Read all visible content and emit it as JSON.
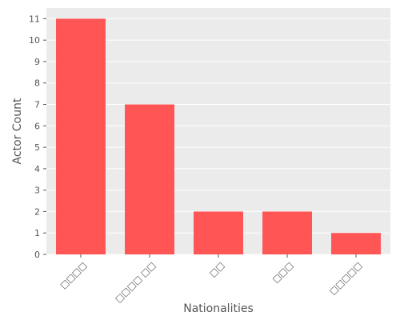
{
  "chart_data": {
    "type": "bar",
    "categories": [
      "□□□□",
      "□□□□ □□",
      "□□",
      "□□□",
      "□□□□□"
    ],
    "values": [
      11,
      7,
      2,
      2,
      1
    ],
    "title": "",
    "xlabel": "Nationalities",
    "ylabel": "Actor Count",
    "ylim": [
      0,
      11.5
    ],
    "yticks": [
      0,
      1,
      2,
      3,
      4,
      5,
      6,
      7,
      8,
      9,
      10,
      11
    ],
    "grid": true,
    "bar_color": "#ff5555",
    "plot_background": "#ebebeb",
    "grid_color": "#ffffff"
  }
}
